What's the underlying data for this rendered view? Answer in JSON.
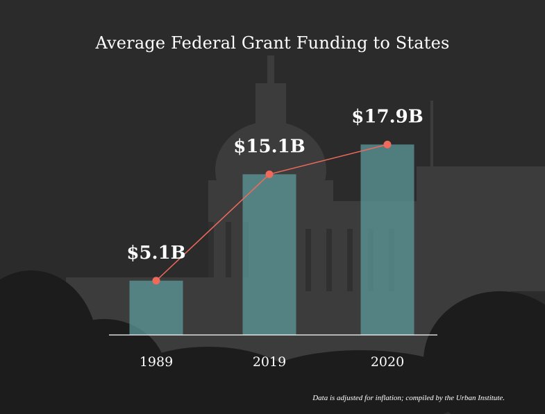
{
  "chart_data": {
    "type": "bar",
    "title": "Average Federal Grant Funding to States",
    "categories": [
      "1989",
      "2019",
      "2020"
    ],
    "values": [
      5.1,
      15.1,
      17.9
    ],
    "value_labels": [
      "$5.1B",
      "$15.1B",
      "$17.9B"
    ],
    "unit": "B",
    "overlay": "line",
    "xlabel": "",
    "ylabel": "",
    "ylim": [
      0,
      20.4
    ],
    "grid": false,
    "note": "Data is adjusted for inflation; compiled by the Urban Institute.",
    "colors": {
      "bar": "#5e9ea0",
      "line": "#f06a5c",
      "text": "#ffffff",
      "axis": "#ffffff",
      "background": "#2a2a2a"
    }
  }
}
